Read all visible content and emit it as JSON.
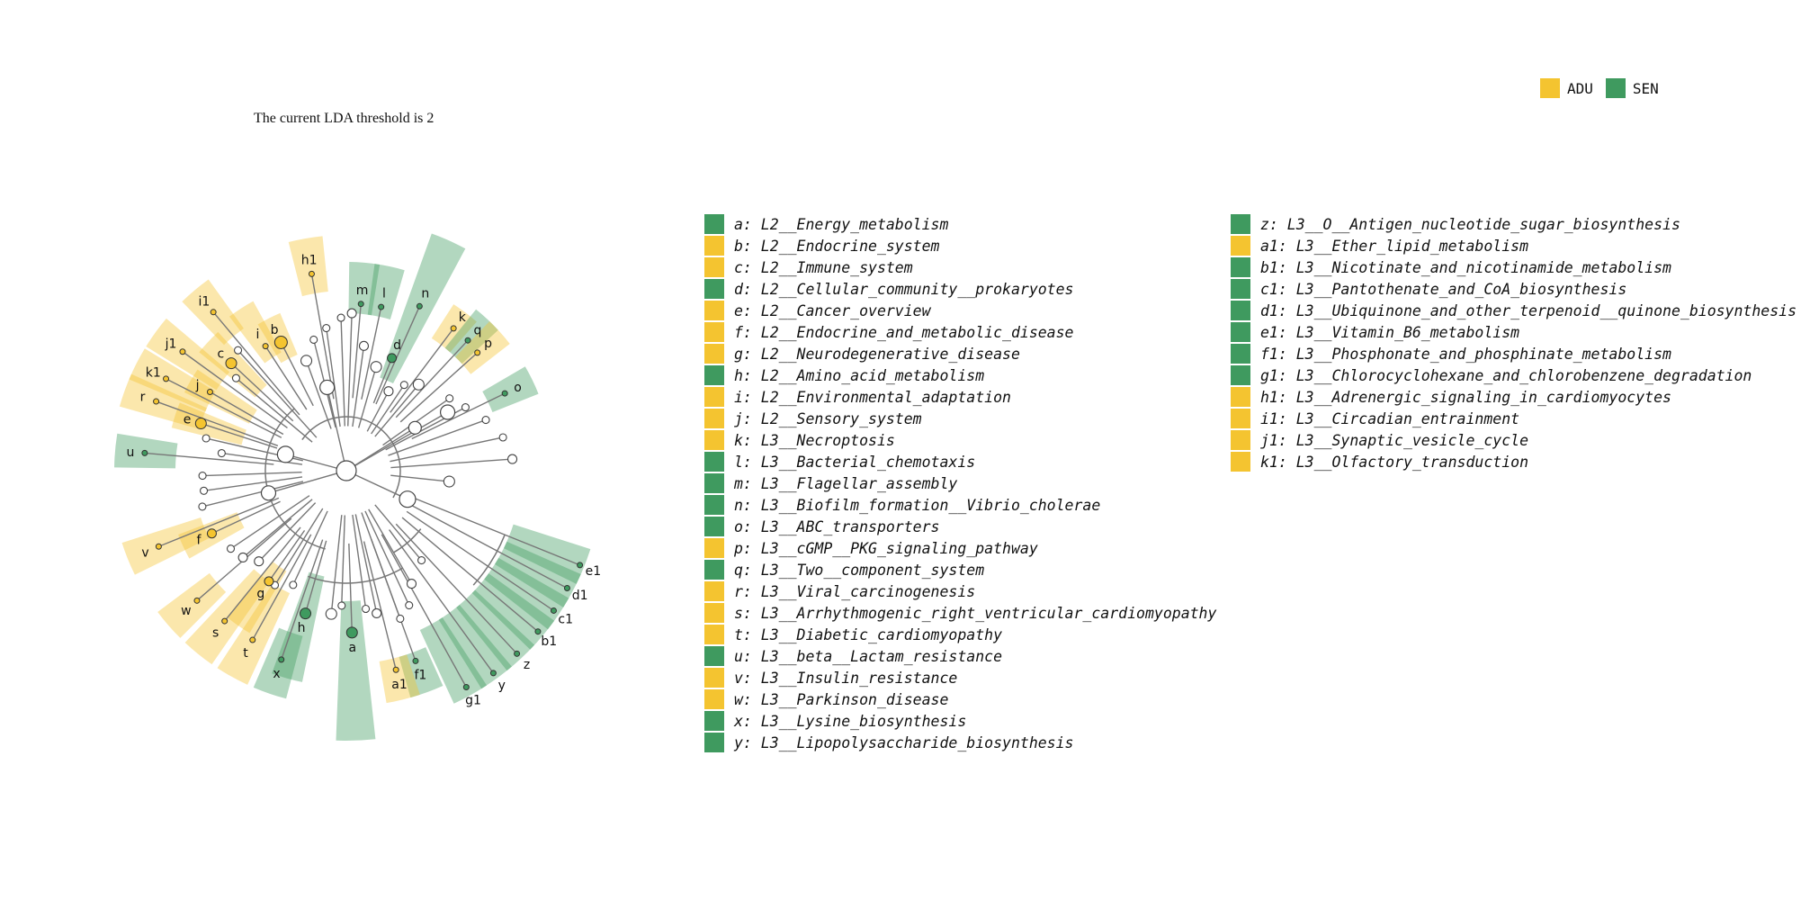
{
  "header": {
    "threshold_text": "The current LDA threshold is 2"
  },
  "colors": {
    "ADU": "#f4c430",
    "SEN": "#3f9a5f"
  },
  "group_legend": [
    {
      "label": "ADU",
      "color": "#f4c430"
    },
    {
      "label": "SEN",
      "color": "#3f9a5f"
    }
  ],
  "taxa": [
    {
      "key": "a",
      "name": "L2__Energy_metabolism",
      "group": "SEN"
    },
    {
      "key": "b",
      "name": "L2__Endocrine_system",
      "group": "ADU"
    },
    {
      "key": "c",
      "name": "L2__Immune_system",
      "group": "ADU"
    },
    {
      "key": "d",
      "name": "L2__Cellular_community__prokaryotes",
      "group": "SEN"
    },
    {
      "key": "e",
      "name": "L2__Cancer_overview",
      "group": "ADU"
    },
    {
      "key": "f",
      "name": "L2__Endocrine_and_metabolic_disease",
      "group": "ADU"
    },
    {
      "key": "g",
      "name": "L2__Neurodegenerative_disease",
      "group": "ADU"
    },
    {
      "key": "h",
      "name": "L2__Amino_acid_metabolism",
      "group": "SEN"
    },
    {
      "key": "i",
      "name": "L2__Environmental_adaptation",
      "group": "ADU"
    },
    {
      "key": "j",
      "name": "L2__Sensory_system",
      "group": "ADU"
    },
    {
      "key": "k",
      "name": "L3__Necroptosis",
      "group": "ADU"
    },
    {
      "key": "l",
      "name": "L3__Bacterial_chemotaxis",
      "group": "SEN"
    },
    {
      "key": "m",
      "name": "L3__Flagellar_assembly",
      "group": "SEN"
    },
    {
      "key": "n",
      "name": "L3__Biofilm_formation__Vibrio_cholerae",
      "group": "SEN"
    },
    {
      "key": "o",
      "name": "L3__ABC_transporters",
      "group": "SEN"
    },
    {
      "key": "p",
      "name": "L3__cGMP__PKG_signaling_pathway",
      "group": "ADU"
    },
    {
      "key": "q",
      "name": "L3__Two__component_system",
      "group": "SEN"
    },
    {
      "key": "r",
      "name": "L3__Viral_carcinogenesis",
      "group": "ADU"
    },
    {
      "key": "s",
      "name": "L3__Arrhythmogenic_right_ventricular_cardiomyopathy",
      "group": "ADU"
    },
    {
      "key": "t",
      "name": "L3__Diabetic_cardiomyopathy",
      "group": "ADU"
    },
    {
      "key": "u",
      "name": "L3__beta__Lactam_resistance",
      "group": "SEN"
    },
    {
      "key": "v",
      "name": "L3__Insulin_resistance",
      "group": "ADU"
    },
    {
      "key": "w",
      "name": "L3__Parkinson_disease",
      "group": "ADU"
    },
    {
      "key": "x",
      "name": "L3__Lysine_biosynthesis",
      "group": "SEN"
    },
    {
      "key": "y",
      "name": "L3__Lipopolysaccharide_biosynthesis",
      "group": "SEN"
    },
    {
      "key": "z",
      "name": "L3__O__Antigen_nucleotide_sugar_biosynthesis",
      "group": "SEN"
    },
    {
      "key": "a1",
      "name": "L3__Ether_lipid_metabolism",
      "group": "ADU"
    },
    {
      "key": "b1",
      "name": "L3__Nicotinate_and_nicotinamide_metabolism",
      "group": "SEN"
    },
    {
      "key": "c1",
      "name": "L3__Pantothenate_and_CoA_biosynthesis",
      "group": "SEN"
    },
    {
      "key": "d1",
      "name": "L3__Ubiquinone_and_other_terpenoid__quinone_biosynthesis",
      "group": "SEN"
    },
    {
      "key": "e1",
      "name": "L3__Vitamin_B6_metabolism",
      "group": "SEN"
    },
    {
      "key": "f1",
      "name": "L3__Phosphonate_and_phosphinate_metabolism",
      "group": "SEN"
    },
    {
      "key": "g1",
      "name": "L3__Chlorocyclohexane_and_chlorobenzene_degradation",
      "group": "SEN"
    },
    {
      "key": "h1",
      "name": "L3__Adrenergic_signaling_in_cardiomyocytes",
      "group": "ADU"
    },
    {
      "key": "i1",
      "name": "L3__Circadian_entrainment",
      "group": "ADU"
    },
    {
      "key": "j1",
      "name": "L3__Synaptic_vesicle_cycle",
      "group": "ADU"
    },
    {
      "key": "k1",
      "name": "L3__Olfactory_transduction",
      "group": "ADU"
    }
  ]
}
